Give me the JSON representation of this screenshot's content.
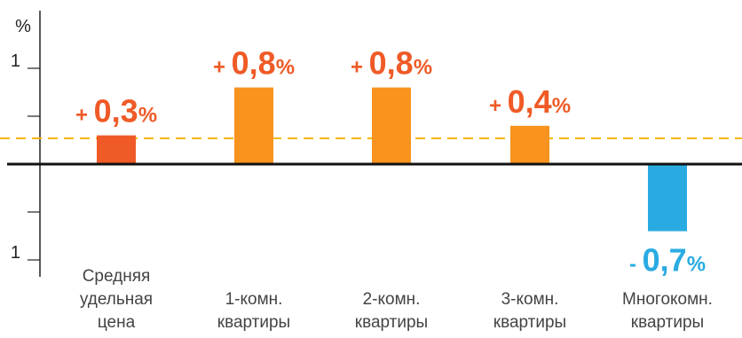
{
  "chart_data": {
    "type": "bar",
    "ylabel": "%",
    "ylim": [
      -1.15,
      1.5
    ],
    "yticks": [
      {
        "value": 1,
        "label": "1"
      },
      {
        "value": 0.5,
        "label": ""
      },
      {
        "value": -0.5,
        "label": ""
      },
      {
        "value": -1,
        "label": "1"
      }
    ],
    "reference_line": {
      "value": 0.27,
      "style": "dashed",
      "color": "#f5b400"
    },
    "categories": [
      {
        "label_lines": [
          "Средняя",
          "удельная",
          "цена"
        ],
        "value": 0.3,
        "sign": "+",
        "number": "0,3",
        "unit": "%",
        "color": "#ef5a26",
        "label_color": "#ef5a26"
      },
      {
        "label_lines": [
          "1-комн.",
          "квартиры"
        ],
        "value": 0.8,
        "sign": "+",
        "number": "0,8",
        "unit": "%",
        "color": "#f7931e",
        "label_color": "#ef5a26"
      },
      {
        "label_lines": [
          "2-комн.",
          "квартиры"
        ],
        "value": 0.8,
        "sign": "+",
        "number": "0,8",
        "unit": "%",
        "color": "#f7931e",
        "label_color": "#ef5a26"
      },
      {
        "label_lines": [
          "3-комн.",
          "квартиры"
        ],
        "value": 0.4,
        "sign": "+",
        "number": "0,4",
        "unit": "%",
        "color": "#f7931e",
        "label_color": "#ef5a26"
      },
      {
        "label_lines": [
          "Многокомн.",
          "квартиры"
        ],
        "value": -0.7,
        "sign": "-",
        "number": "0,7",
        "unit": "%",
        "color": "#29abe2",
        "label_color": "#29abe2"
      }
    ],
    "grid": false,
    "legend": "none"
  }
}
